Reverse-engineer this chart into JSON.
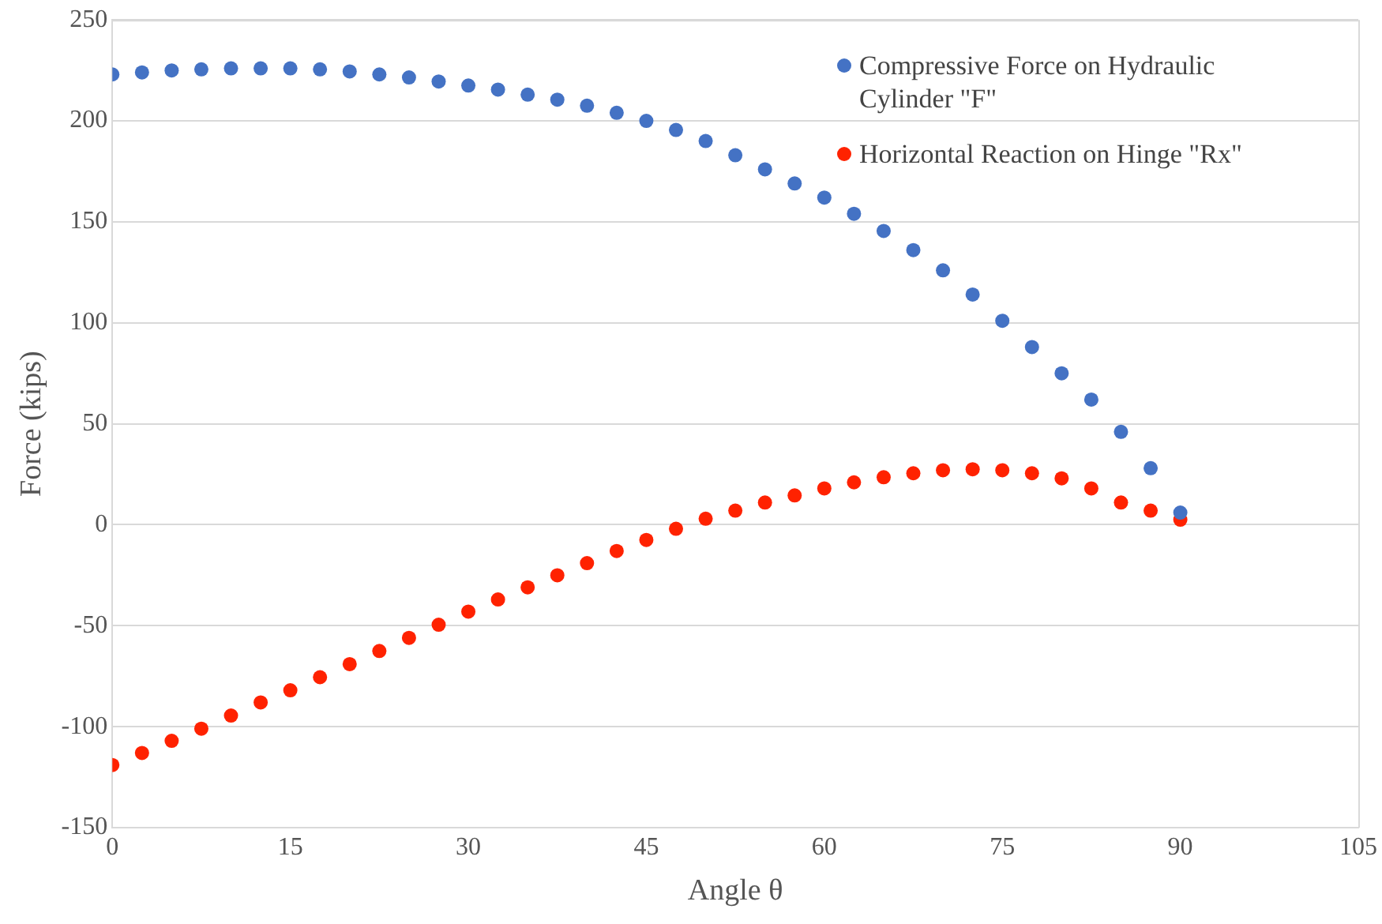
{
  "chart_data": {
    "type": "scatter",
    "xlabel": "Angle θ",
    "ylabel": "Force (kips)",
    "xlim": [
      0,
      105
    ],
    "xticks": [
      0,
      15,
      30,
      45,
      60,
      75,
      90,
      105
    ],
    "ylim": [
      -150,
      250
    ],
    "yticks": [
      -150,
      -100,
      -50,
      0,
      50,
      100,
      150,
      200,
      250
    ],
    "grid": "y",
    "legend": "top right",
    "marker": "circle",
    "x": [
      0,
      2.5,
      5,
      7.5,
      10,
      12.5,
      15,
      17.5,
      20,
      22.5,
      25,
      27.5,
      30,
      32.5,
      35,
      37.5,
      40,
      42.5,
      45,
      47.5,
      50,
      52.5,
      55,
      57.5,
      60,
      62.5,
      65,
      67.5,
      70,
      72.5,
      75,
      77.5,
      80,
      82.5,
      85,
      87.5,
      90
    ],
    "series": [
      {
        "name": "Compressive Force on Hydraulic Cylinder \"F\"",
        "color": "#4472c4",
        "values": [
          223,
          224,
          225,
          225.5,
          226,
          226,
          226,
          225.5,
          224.5,
          223,
          221.5,
          219.5,
          217.5,
          215.5,
          213,
          210.5,
          207.5,
          204,
          200,
          195.5,
          190,
          183,
          176,
          169,
          162,
          154,
          145.5,
          136,
          126,
          114,
          101,
          88,
          75,
          62,
          46,
          28,
          6
        ]
      },
      {
        "name": "Horizontal Reaction on Hinge \"Rx\"",
        "color": "#ff2200",
        "values": [
          -119,
          -113,
          -107,
          -101,
          -94.5,
          -88,
          -82,
          -75.5,
          -69,
          -62.5,
          -56,
          -49.5,
          -43,
          -37,
          -31,
          -25,
          -19,
          -13,
          -7.5,
          -2,
          3,
          7,
          11,
          14.5,
          18,
          21,
          23.5,
          25.5,
          27,
          27.5,
          27,
          25.5,
          23,
          18,
          11,
          7,
          2.5
        ]
      }
    ]
  }
}
